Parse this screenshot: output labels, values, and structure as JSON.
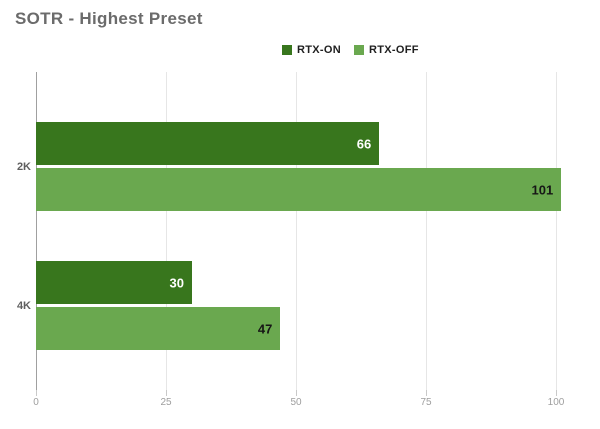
{
  "chart_data": {
    "type": "bar",
    "orientation": "horizontal",
    "title": "SOTR - Highest Preset",
    "categories": [
      "2K",
      "4K"
    ],
    "series": [
      {
        "name": "RTX-ON",
        "color": "#38761d",
        "value_label_color": "#ffffff",
        "values": [
          66,
          30
        ]
      },
      {
        "name": "RTX-OFF",
        "color": "#6aa84f",
        "value_label_color": "#161616",
        "values": [
          101,
          47
        ]
      }
    ],
    "xlabel": "",
    "ylabel": "",
    "x_ticks": [
      0,
      25,
      50,
      75,
      100
    ],
    "xlim": [
      0,
      100
    ],
    "grid": "vertical-only",
    "legend_position": "top-center",
    "value_labels": "inside-end"
  },
  "colors": {
    "background": "#ffffff",
    "title_text": "#6b6b6b",
    "legend_text": "#202020",
    "axis_line": "#a0a0a0",
    "gridline": "#e6e6e6",
    "tick_label": "#9e9e9e",
    "category_label": "#5f5f5f"
  }
}
